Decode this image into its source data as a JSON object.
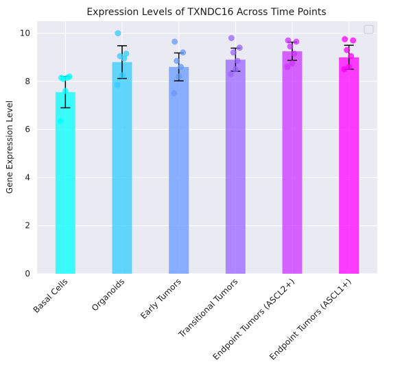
{
  "chart_data": {
    "type": "bar",
    "title": "Expression Levels of TXNDC16 Across Time Points",
    "xlabel": "",
    "ylabel": "Gene Expression Level",
    "ylim": [
      0,
      10.5
    ],
    "yticks": [
      0,
      2,
      4,
      6,
      8,
      10
    ],
    "grid": true,
    "legend": "top-right (empty)",
    "categories": [
      "Basal Cells",
      "Organoids",
      "Early Tumors",
      "Transitional Tumors",
      "Endpoint Tumors (ASCL2+)",
      "Endpoint Tumors (ASCL1+)"
    ],
    "values": [
      7.55,
      8.8,
      8.6,
      8.9,
      9.25,
      9.0
    ],
    "errors": [
      0.65,
      0.68,
      0.58,
      0.48,
      0.38,
      0.5
    ],
    "colors": [
      "#00ffff",
      "#33ccff",
      "#6699ff",
      "#9966ff",
      "#cc33ff",
      "#ff00ff"
    ],
    "points": [
      [
        8.15,
        8.2,
        8.1,
        8.15,
        7.6,
        6.35
      ],
      [
        10.0,
        9.15,
        9.05,
        8.95,
        8.25,
        7.85
      ],
      [
        9.65,
        9.2,
        8.85,
        8.6,
        8.2,
        7.5
      ],
      [
        9.8,
        9.4,
        9.2,
        8.85,
        8.5,
        8.3
      ],
      [
        9.7,
        9.65,
        9.45,
        9.15,
        8.75,
        8.6
      ],
      [
        9.75,
        9.7,
        9.3,
        9.05,
        8.6,
        8.5
      ]
    ]
  }
}
